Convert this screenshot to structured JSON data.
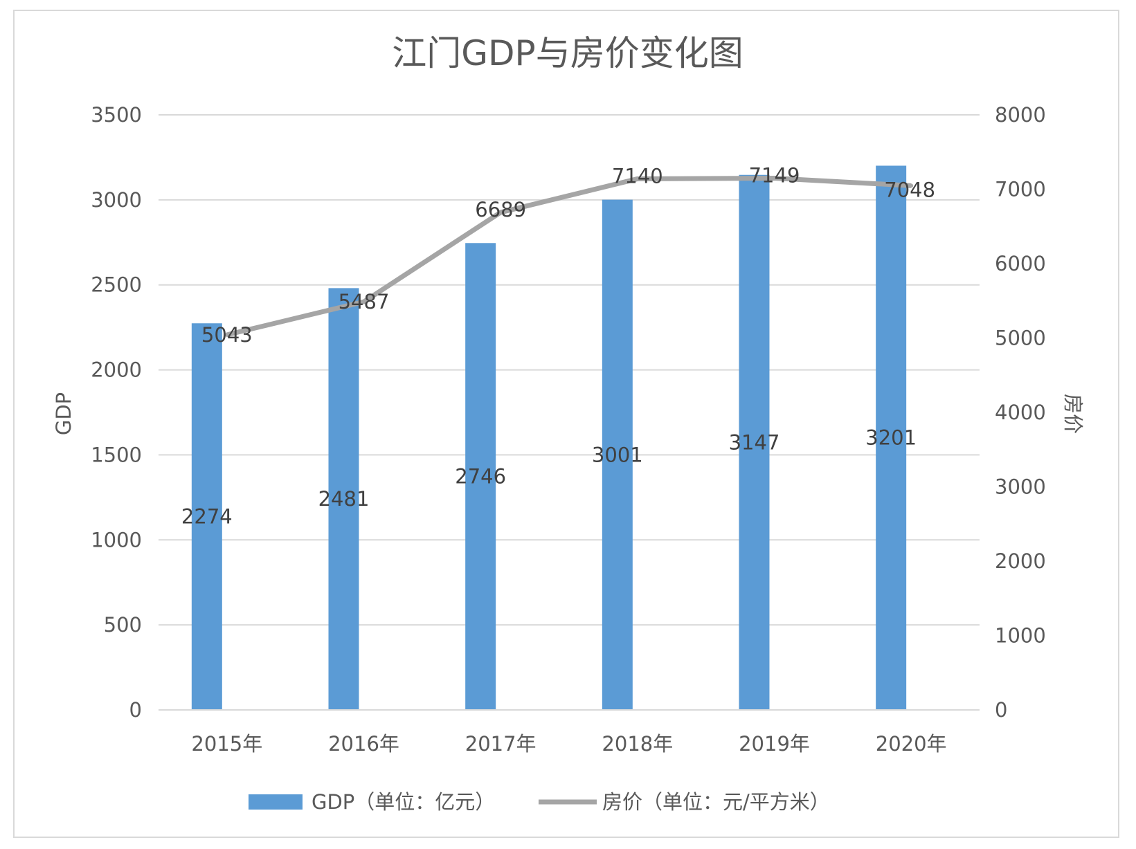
{
  "chart_data": {
    "type": "bar+line",
    "title": "江门GDP与房价变化图",
    "categories": [
      "2015年",
      "2016年",
      "2017年",
      "2018年",
      "2019年",
      "2020年"
    ],
    "series": [
      {
        "name": "GDP（单位：亿元）",
        "type": "bar",
        "axis": "left",
        "values": [
          2274,
          2481,
          2746,
          3001,
          3147,
          3201
        ],
        "color": "#5b9bd5"
      },
      {
        "name": "房价（单位：元/平方米）",
        "type": "line",
        "axis": "right",
        "values": [
          5043,
          5487,
          6689,
          7140,
          7149,
          7048
        ],
        "color": "#a5a5a5"
      }
    ],
    "ylabel": "GDP",
    "y2label": "房价",
    "ylim": [
      0,
      3500
    ],
    "yticks": [
      "0",
      "500",
      "1000",
      "1500",
      "2000",
      "2500",
      "3000",
      "3500"
    ],
    "y2lim": [
      0,
      8000
    ],
    "y2ticks": [
      "0",
      "1000",
      "2000",
      "3000",
      "4000",
      "5000",
      "6000",
      "7000",
      "8000"
    ],
    "grid": true,
    "data_labels": true,
    "legend": "bottom"
  }
}
